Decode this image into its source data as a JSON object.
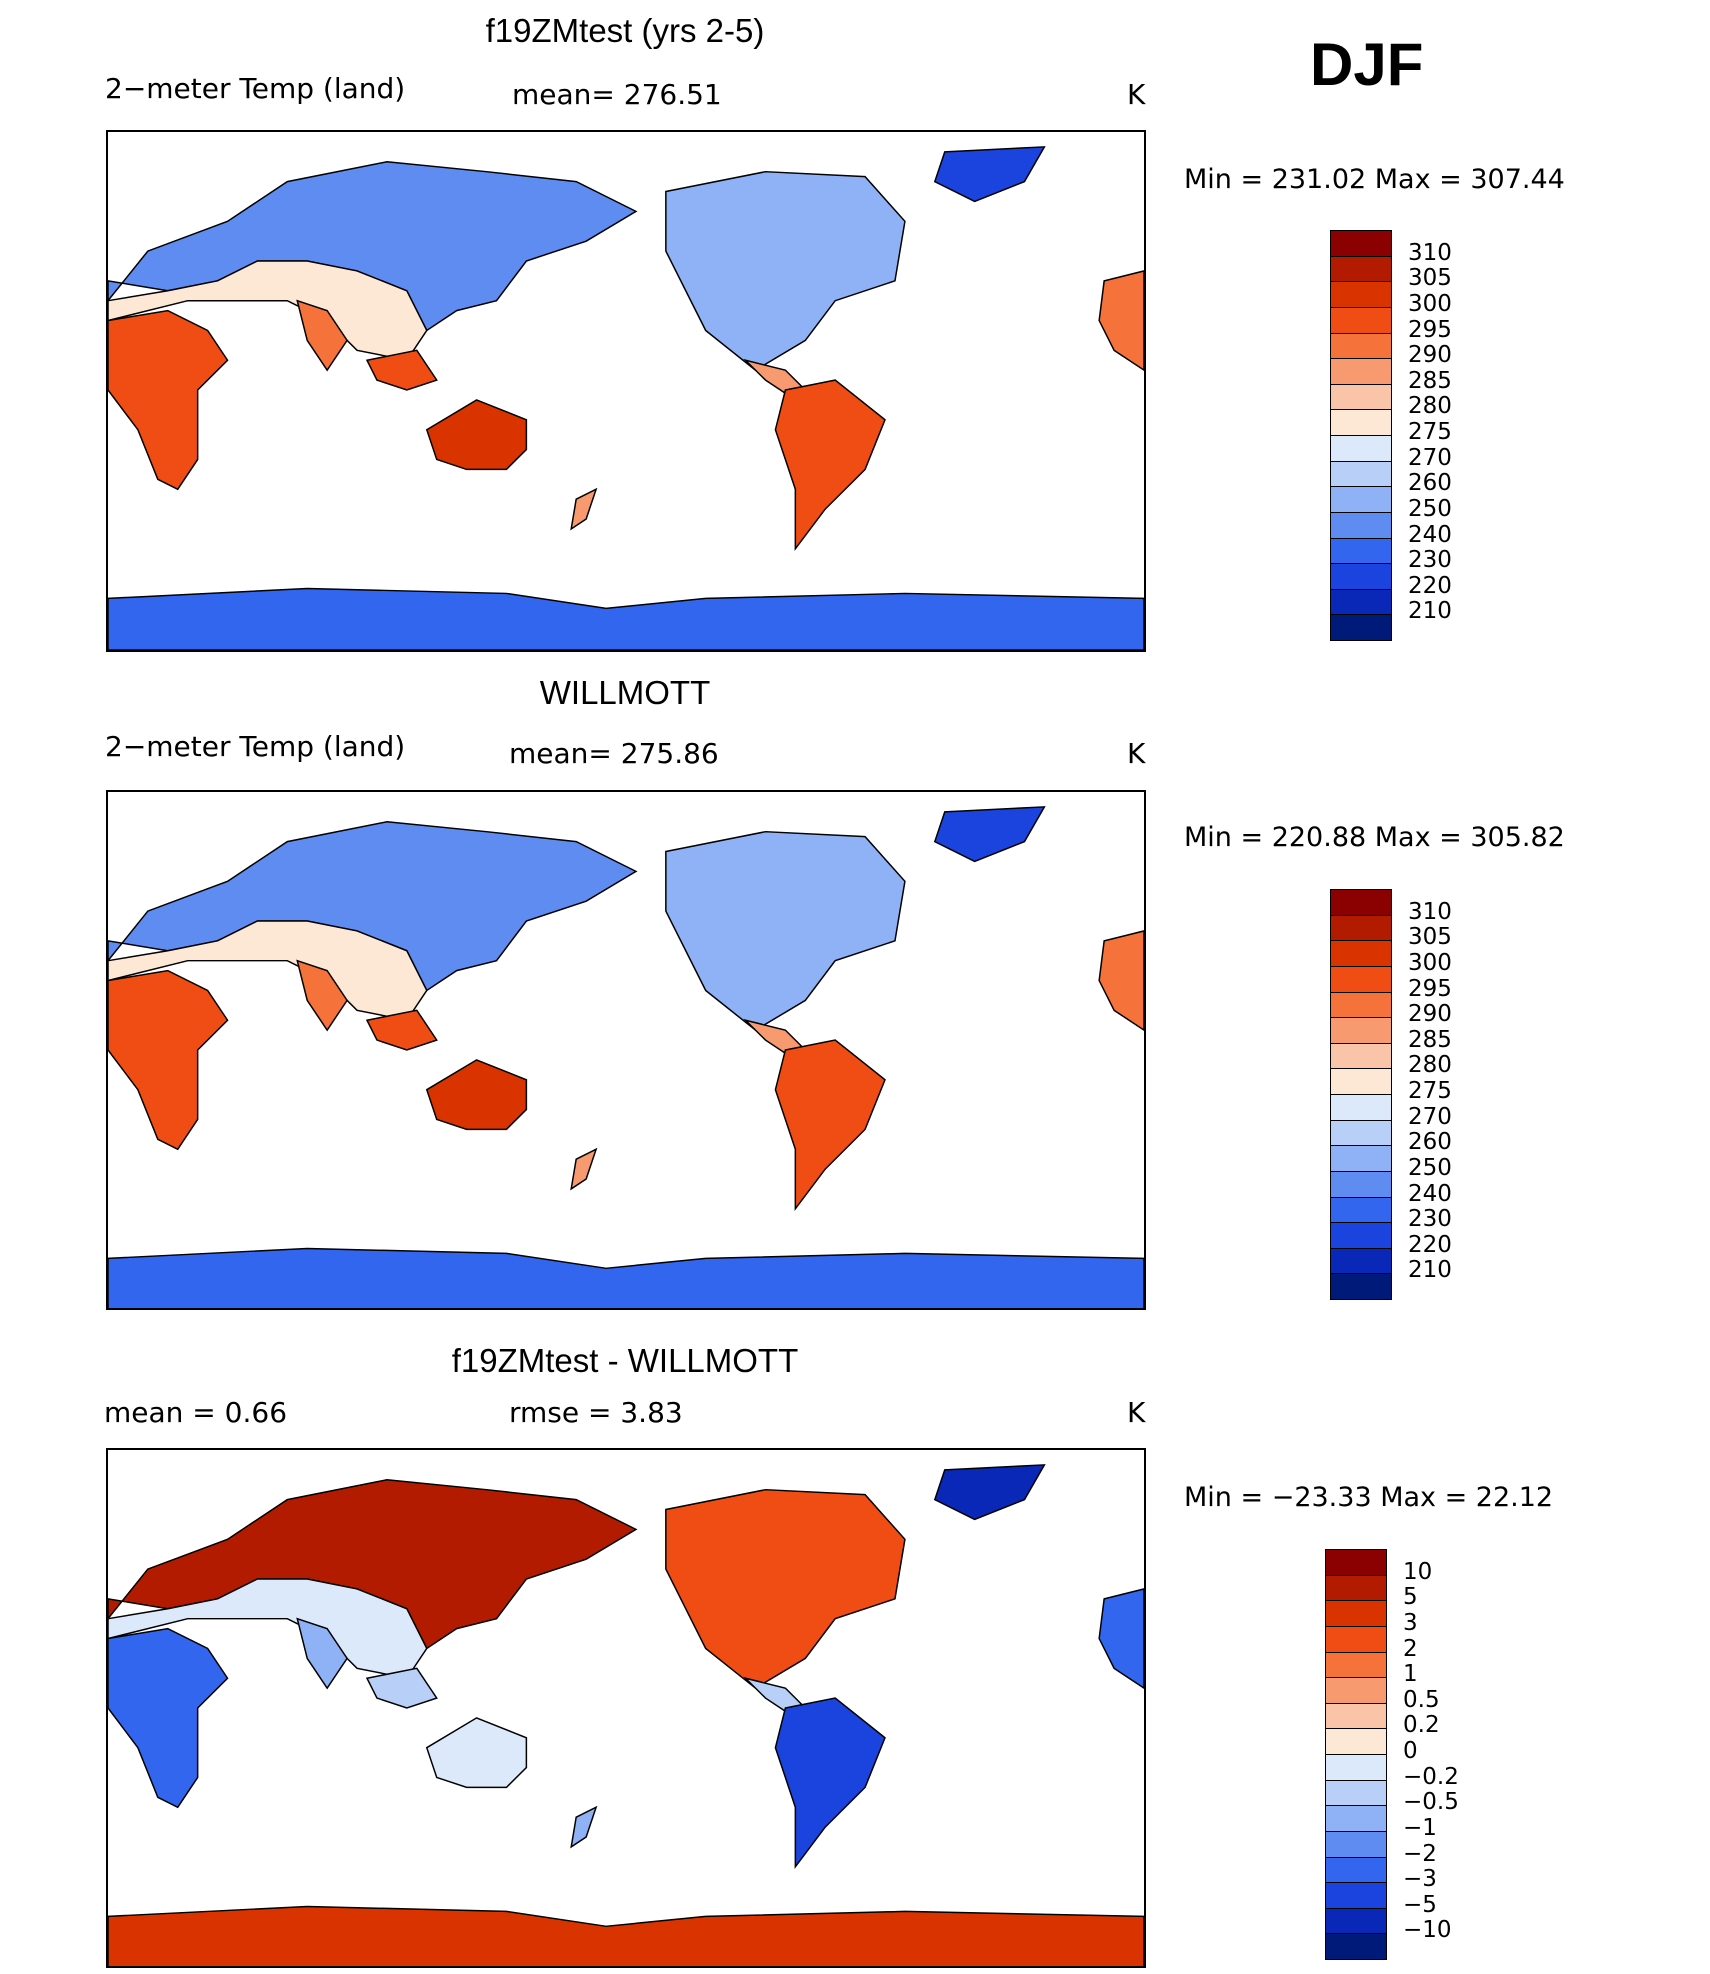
{
  "season": "DJF",
  "panels": [
    {
      "id": "model",
      "title": "f19ZMtest (yrs 2-5)",
      "left_text": "2−meter Temp (land)",
      "mid_text": "mean=  276.51",
      "units": "K",
      "minmax": "Min  =  231.02  Max  =  307.44",
      "palette": "temp"
    },
    {
      "id": "obs",
      "title": "WILLMOTT",
      "left_text": "2−meter Temp (land)",
      "mid_text": "mean=  275.86",
      "units": "K",
      "minmax": "Min  =  220.88  Max  =  305.82",
      "palette": "temp"
    },
    {
      "id": "diff",
      "title": "f19ZMtest - WILLMOTT",
      "left_text": "mean  =      0.66",
      "mid_text": "rmse  =      3.83",
      "units": "K",
      "minmax": "Min  =  −23.33  Max  =    22.12",
      "palette": "diff"
    }
  ],
  "colorbars": {
    "temp": {
      "labels": [
        "310",
        "305",
        "300",
        "295",
        "290",
        "285",
        "280",
        "275",
        "270",
        "260",
        "250",
        "240",
        "230",
        "220",
        "210"
      ],
      "colors": [
        "#8b0000",
        "#b31b00",
        "#d93300",
        "#f04d14",
        "#f5733a",
        "#f79a70",
        "#f9c4a8",
        "#fde8d6",
        "#dce9fb",
        "#b8d0f8",
        "#8fb1f5",
        "#5f8cf0",
        "#3366ee",
        "#1a44dd",
        "#0a28b8",
        "#001a7a"
      ]
    },
    "diff": {
      "labels": [
        "10",
        "5",
        "3",
        "2",
        "1",
        "0.5",
        "0.2",
        "0",
        "−0.2",
        "−0.5",
        "−1",
        "−2",
        "−3",
        "−5",
        "−10"
      ],
      "colors": [
        "#8b0000",
        "#b31b00",
        "#d93300",
        "#f04d14",
        "#f5733a",
        "#f79a70",
        "#f9c4a8",
        "#fde8d6",
        "#dce9fb",
        "#b8d0f8",
        "#8fb1f5",
        "#5f8cf0",
        "#3366ee",
        "#1a44dd",
        "#0a28b8",
        "#001a7a"
      ]
    }
  }
}
